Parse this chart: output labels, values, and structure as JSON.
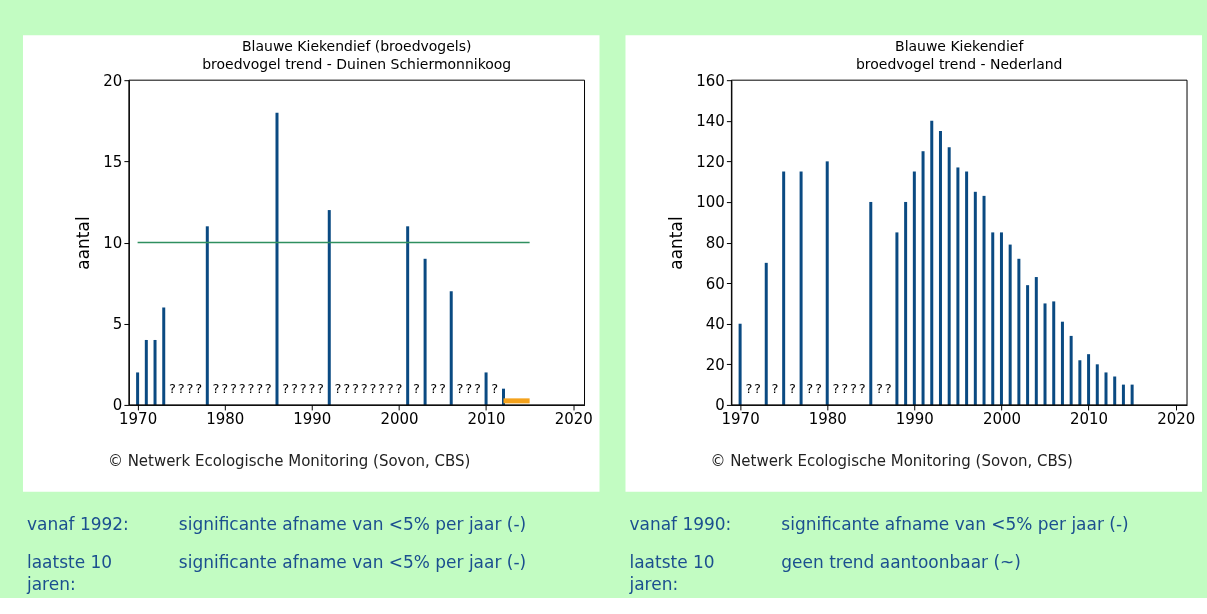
{
  "chart_data": [
    {
      "type": "bar",
      "title": "Blauwe Kiekendief (broedvogels)",
      "subtitle": "broedvogel trend - Duinen Schiermonnikoog",
      "ylabel": "aantal",
      "xlim": [
        1969,
        2021.3
      ],
      "xticks": [
        1970,
        1980,
        1990,
        2000,
        2010,
        2020
      ],
      "ylim": [
        0,
        20
      ],
      "yticks": [
        0,
        5,
        10,
        15,
        20
      ],
      "series": [
        {
          "color": "#0a4a82",
          "x": [
            1970,
            1971,
            1972,
            1973,
            1974,
            1975,
            1976,
            1977,
            1978,
            1979,
            1980,
            1981,
            1982,
            1983,
            1984,
            1985,
            1986,
            1987,
            1988,
            1989,
            1990,
            1991,
            1992,
            1993,
            1994,
            1995,
            1996,
            1997,
            1998,
            1999,
            2000,
            2001,
            2002,
            2003,
            2004,
            2005,
            2006,
            2007,
            2008,
            2009,
            2010,
            2011,
            2012
          ],
          "values": [
            2,
            4,
            4,
            6,
            null,
            null,
            null,
            null,
            11,
            null,
            null,
            null,
            null,
            null,
            null,
            null,
            18,
            null,
            null,
            null,
            null,
            null,
            12,
            null,
            null,
            null,
            null,
            null,
            null,
            null,
            null,
            11,
            null,
            9,
            null,
            null,
            7,
            null,
            null,
            null,
            2,
            null,
            1
          ],
          "value_labels": [
            null,
            null,
            null,
            null,
            "?",
            "?",
            "?",
            "?",
            null,
            "?",
            "?",
            "?",
            "?",
            "?",
            "?",
            "?",
            null,
            "?",
            "?",
            "?",
            "?",
            "?",
            null,
            "?",
            "?",
            "?",
            "?",
            "?",
            "?",
            "?",
            "?",
            null,
            "?",
            null,
            "?",
            "?",
            null,
            "?",
            "?",
            "?",
            null,
            "?",
            null
          ]
        },
        {
          "type": "line",
          "color": "#2f8f5f",
          "x": [
            1970,
            2015
          ],
          "values": [
            10,
            10
          ]
        },
        {
          "type": "line",
          "color": "#f4a21c",
          "x": [
            2012,
            2015
          ],
          "values": [
            0.25,
            0.25
          ]
        }
      ],
      "annotations": [
        "© Netwerk Ecologische Monitoring (Sovon, CBS)",
        "vanaf 1992:",
        "significante afname van <5% per jaar (-)",
        "laatste 10 jaren:",
        "significante afname van <5% per jaar (-)"
      ]
    },
    {
      "type": "bar",
      "title": "Blauwe Kiekendief",
      "subtitle": "broedvogel trend - Nederland",
      "ylabel": "aantal",
      "xlim": [
        1969,
        2021.3
      ],
      "xticks": [
        1970,
        1980,
        1990,
        2000,
        2010,
        2020
      ],
      "ylim": [
        0,
        160
      ],
      "yticks": [
        0,
        20,
        40,
        60,
        80,
        100,
        120,
        140,
        160
      ],
      "series": [
        {
          "color": "#0a4a82",
          "x": [
            1970,
            1971,
            1972,
            1973,
            1974,
            1975,
            1976,
            1977,
            1978,
            1979,
            1980,
            1981,
            1982,
            1983,
            1984,
            1985,
            1986,
            1987,
            1988,
            1989,
            1990,
            1991,
            1992,
            1993,
            1994,
            1995,
            1996,
            1997,
            1998,
            1999,
            2000,
            2001,
            2002,
            2003,
            2004,
            2005,
            2006,
            2007,
            2008,
            2009,
            2010,
            2011,
            2012,
            2013,
            2014,
            2015
          ],
          "values": [
            40,
            null,
            null,
            70,
            null,
            115,
            null,
            115,
            null,
            null,
            120,
            null,
            null,
            null,
            null,
            100,
            null,
            null,
            85,
            100,
            115,
            125,
            140,
            135,
            127,
            117,
            115,
            105,
            103,
            85,
            85,
            79,
            72,
            59,
            63,
            50,
            51,
            41,
            34,
            22,
            25,
            20,
            16,
            14,
            10,
            10
          ],
          "value_labels": [
            null,
            "?",
            "?",
            null,
            "?",
            null,
            "?",
            null,
            "?",
            "?",
            null,
            "?",
            "?",
            "?",
            "?",
            null,
            "?",
            "?",
            null,
            null,
            null,
            null,
            null,
            null,
            null,
            null,
            null,
            null,
            null,
            null,
            null,
            null,
            null,
            null,
            null,
            null,
            null,
            null,
            null,
            null,
            null,
            null,
            null,
            null,
            null,
            null
          ]
        }
      ],
      "annotations": [
        "© Netwerk Ecologische Monitoring (Sovon, CBS)",
        "vanaf 1990:",
        "significante afname van <5% per jaar (-)",
        "laatste 10 jaren:",
        "geen trend aantoonbaar (~)"
      ]
    }
  ]
}
